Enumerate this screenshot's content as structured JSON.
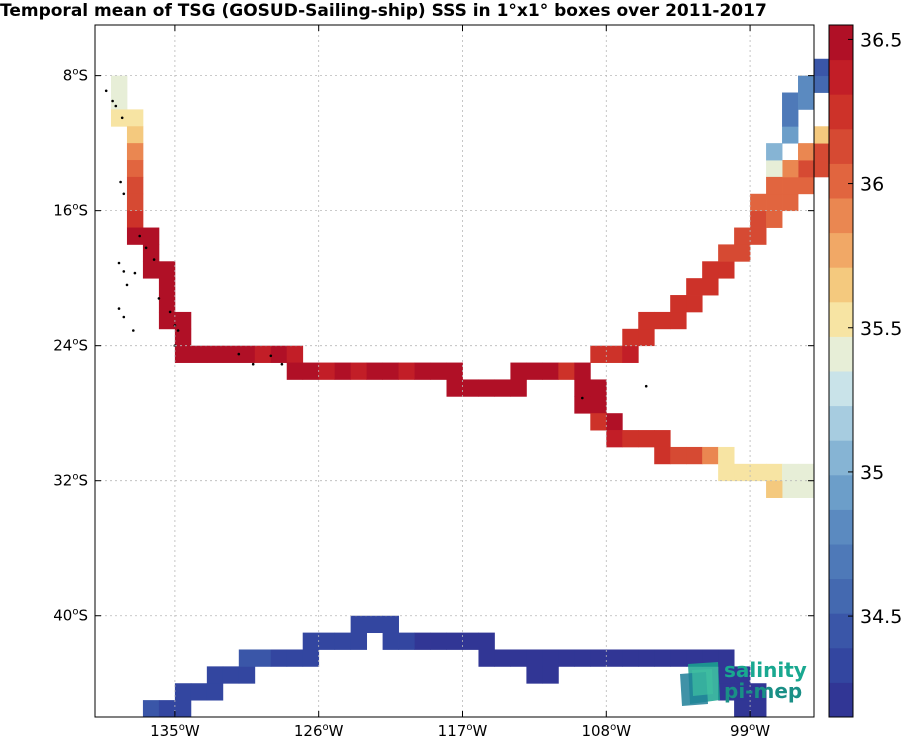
{
  "title": "Temporal mean of TSG (GOSUD-Sailing-ship) SSS in 1°x1° boxes over 2011-2017",
  "map": {
    "lon_range": [
      -140,
      -95
    ],
    "lat_range": [
      -46,
      -5
    ],
    "x_ticks": [
      {
        "lon": -135,
        "label_num": "135",
        "label_sup": "o",
        "label_dir": "W"
      },
      {
        "lon": -126,
        "label_num": "126",
        "label_sup": "o",
        "label_dir": "W"
      },
      {
        "lon": -117,
        "label_num": "117",
        "label_sup": "o",
        "label_dir": "W"
      },
      {
        "lon": -108,
        "label_num": "108",
        "label_sup": "o",
        "label_dir": "W"
      },
      {
        "lon": -99,
        "label_num": "99",
        "label_sup": "o",
        "label_dir": "W"
      }
    ],
    "y_ticks": [
      {
        "lat": -8,
        "label_num": "8",
        "label_sup": "o",
        "label_dir": "S"
      },
      {
        "lat": -16,
        "label_num": "16",
        "label_sup": "o",
        "label_dir": "S"
      },
      {
        "lat": -24,
        "label_num": "24",
        "label_sup": "o",
        "label_dir": "S"
      },
      {
        "lat": -32,
        "label_num": "32",
        "label_sup": "o",
        "label_dir": "S"
      },
      {
        "lat": -40,
        "label_num": "40",
        "label_sup": "o",
        "label_dir": "S"
      }
    ],
    "grid": true,
    "colorbar": {
      "min": 34.15,
      "max": 36.55,
      "ticks": [
        "34.5",
        "35",
        "35.5",
        "36",
        "36.5"
      ],
      "tick_values": [
        34.5,
        35.0,
        35.5,
        36.0,
        36.5
      ],
      "colors": [
        "#313695",
        "#3346a0",
        "#3a56a8",
        "#4469b0",
        "#4e79b8",
        "#5b8ac0",
        "#6c9ec9",
        "#86b4d4",
        "#a7cce0",
        "#c9e3e9",
        "#e7eed7",
        "#f7e4a3",
        "#f4c97e",
        "#f1a866",
        "#ea8751",
        "#e1653f",
        "#d64a33",
        "#cd3229",
        "#c21e27",
        "#b01026"
      ],
      "placement": "right"
    },
    "cells": [
      [
        -139,
        -8,
        35.4
      ],
      [
        -139,
        -9,
        35.4
      ],
      [
        -139,
        -10,
        35.55
      ],
      [
        -138,
        -10,
        35.55
      ],
      [
        -138,
        -11,
        35.7
      ],
      [
        -138,
        -12,
        35.85
      ],
      [
        -138,
        -13,
        35.95
      ],
      [
        -138,
        -14,
        36.1
      ],
      [
        -138,
        -15,
        36.1
      ],
      [
        -138,
        -16,
        36.3
      ],
      [
        -138,
        -17,
        36.45
      ],
      [
        -137,
        -17,
        36.45
      ],
      [
        -137,
        -18,
        36.45
      ],
      [
        -137,
        -19,
        36.45
      ],
      [
        -136,
        -19,
        36.45
      ],
      [
        -136,
        -20,
        36.45
      ],
      [
        -136,
        -21,
        36.45
      ],
      [
        -136,
        -22,
        36.45
      ],
      [
        -135,
        -22,
        36.45
      ],
      [
        -135,
        -23,
        36.45
      ],
      [
        -135,
        -24,
        36.45
      ],
      [
        -134,
        -24,
        36.45
      ],
      [
        -133,
        -24,
        36.45
      ],
      [
        -132,
        -24,
        36.45
      ],
      [
        -131,
        -24,
        36.45
      ],
      [
        -130,
        -24,
        36.35
      ],
      [
        -129,
        -24,
        36.45
      ],
      [
        -128,
        -24,
        36.35
      ],
      [
        -128,
        -25,
        36.45
      ],
      [
        -127,
        -25,
        36.45
      ],
      [
        -126,
        -25,
        36.35
      ],
      [
        -125,
        -25,
        36.45
      ],
      [
        -124,
        -25,
        36.35
      ],
      [
        -123,
        -25,
        36.45
      ],
      [
        -122,
        -25,
        36.45
      ],
      [
        -121,
        -25,
        36.35
      ],
      [
        -120,
        -25,
        36.45
      ],
      [
        -119,
        -25,
        36.45
      ],
      [
        -118,
        -25,
        36.45
      ],
      [
        -118,
        -26,
        36.45
      ],
      [
        -117,
        -26,
        36.45
      ],
      [
        -116,
        -26,
        36.45
      ],
      [
        -115,
        -26,
        36.45
      ],
      [
        -114,
        -26,
        36.45
      ],
      [
        -114,
        -25,
        36.45
      ],
      [
        -113,
        -25,
        36.45
      ],
      [
        -112,
        -25,
        36.45
      ],
      [
        -111,
        -25,
        36.3
      ],
      [
        -110,
        -25,
        36.45
      ],
      [
        -110,
        -26,
        36.45
      ],
      [
        -110,
        -27,
        36.45
      ],
      [
        -109,
        -26,
        36.45
      ],
      [
        -109,
        -27,
        36.45
      ],
      [
        -109,
        -28,
        36.3
      ],
      [
        -108,
        -28,
        36.45
      ],
      [
        -108,
        -29,
        36.35
      ],
      [
        -107,
        -29,
        36.25
      ],
      [
        -106,
        -29,
        36.25
      ],
      [
        -105,
        -29,
        36.25
      ],
      [
        -105,
        -30,
        36.25
      ],
      [
        -104,
        -30,
        36.1
      ],
      [
        -103,
        -30,
        36.1
      ],
      [
        -102,
        -30,
        35.85
      ],
      [
        -101,
        -30,
        35.5
      ],
      [
        -101,
        -31,
        35.5
      ],
      [
        -100,
        -31,
        35.5
      ],
      [
        -99,
        -31,
        35.5
      ],
      [
        -98,
        -31,
        35.5
      ],
      [
        -97,
        -31,
        35.45
      ],
      [
        -97,
        -32,
        35.4
      ],
      [
        -98,
        -32,
        35.7
      ],
      [
        -96,
        -31,
        35.45
      ],
      [
        -96,
        -32,
        35.4
      ],
      [
        -109,
        -24,
        36.3
      ],
      [
        -108,
        -24,
        36.3
      ],
      [
        -107,
        -24,
        36.35
      ],
      [
        -107,
        -23,
        36.3
      ],
      [
        -106,
        -23,
        36.3
      ],
      [
        -106,
        -22,
        36.3
      ],
      [
        -105,
        -22,
        36.3
      ],
      [
        -104,
        -22,
        36.3
      ],
      [
        -104,
        -21,
        36.3
      ],
      [
        -103,
        -21,
        36.25
      ],
      [
        -103,
        -20,
        36.25
      ],
      [
        -102,
        -20,
        36.2
      ],
      [
        -102,
        -19,
        36.2
      ],
      [
        -101,
        -19,
        36.2
      ],
      [
        -101,
        -18,
        36.15
      ],
      [
        -100,
        -18,
        36.15
      ],
      [
        -100,
        -17,
        36.15
      ],
      [
        -99,
        -17,
        36.15
      ],
      [
        -99,
        -16,
        36.1
      ],
      [
        -98,
        -16,
        36.0
      ],
      [
        -98,
        -15,
        36.0
      ],
      [
        -97,
        -15,
        36.0
      ],
      [
        -97,
        -14,
        36.0
      ],
      [
        -96,
        -14,
        35.95
      ],
      [
        -96,
        -13,
        36.1
      ],
      [
        -95,
        -13,
        36.1
      ],
      [
        -95,
        -12,
        36.1
      ],
      [
        -95,
        -11,
        35.65
      ],
      [
        -96,
        -12,
        35.9
      ],
      [
        -97,
        -13,
        35.9
      ],
      [
        -98,
        -13,
        35.4
      ],
      [
        -98,
        -12,
        35.0
      ],
      [
        -97,
        -11,
        34.9
      ],
      [
        -97,
        -10,
        34.65
      ],
      [
        -97,
        -9,
        34.65
      ],
      [
        -96,
        -9,
        34.85
      ],
      [
        -96,
        -8,
        34.85
      ],
      [
        -95,
        -8,
        34.6
      ],
      [
        -95,
        -7,
        34.5
      ],
      [
        -98,
        -14,
        36.0
      ],
      [
        -99,
        -15,
        36.0
      ],
      [
        -137,
        -45,
        34.45
      ],
      [
        -136,
        -45,
        34.3
      ],
      [
        -135,
        -45,
        34.3
      ],
      [
        -135,
        -44,
        34.3
      ],
      [
        -134,
        -44,
        34.3
      ],
      [
        -133,
        -44,
        34.3
      ],
      [
        -133,
        -43,
        34.3
      ],
      [
        -132,
        -43,
        34.35
      ],
      [
        -131,
        -43,
        34.35
      ],
      [
        -131,
        -42,
        34.4
      ],
      [
        -130,
        -42,
        34.4
      ],
      [
        -129,
        -42,
        34.35
      ],
      [
        -128,
        -42,
        34.3
      ],
      [
        -127,
        -42,
        34.3
      ],
      [
        -127,
        -41,
        34.3
      ],
      [
        -126,
        -41,
        34.3
      ],
      [
        -125,
        -41,
        34.3
      ],
      [
        -124,
        -41,
        34.3
      ],
      [
        -124,
        -40,
        34.3
      ],
      [
        -123,
        -40,
        34.3
      ],
      [
        -122,
        -40,
        34.3
      ],
      [
        -122,
        -41,
        34.3
      ],
      [
        -121,
        -41,
        34.3
      ],
      [
        -120,
        -41,
        34.2
      ],
      [
        -119,
        -41,
        34.2
      ],
      [
        -118,
        -41,
        34.2
      ],
      [
        -117,
        -41,
        34.2
      ],
      [
        -116,
        -41,
        34.2
      ],
      [
        -116,
        -42,
        34.2
      ],
      [
        -115,
        -42,
        34.2
      ],
      [
        -114,
        -42,
        34.2
      ],
      [
        -113,
        -42,
        34.2
      ],
      [
        -112,
        -42,
        34.2
      ],
      [
        -111,
        -42,
        34.2
      ],
      [
        -110,
        -42,
        34.2
      ],
      [
        -109,
        -42,
        34.2
      ],
      [
        -108,
        -42,
        34.2
      ],
      [
        -107,
        -42,
        34.2
      ],
      [
        -106,
        -42,
        34.2
      ],
      [
        -105,
        -42,
        34.2
      ],
      [
        -104,
        -42,
        34.2
      ],
      [
        -103,
        -42,
        34.2
      ],
      [
        -102,
        -42,
        34.2
      ],
      [
        -101,
        -42,
        34.2
      ],
      [
        -101,
        -43,
        34.2
      ],
      [
        -100,
        -43,
        34.2
      ],
      [
        -100,
        -44,
        34.2
      ],
      [
        -99,
        -44,
        34.2
      ],
      [
        -99,
        -45,
        34.2
      ],
      [
        -100,
        -45,
        34.2
      ],
      [
        -101,
        -44,
        34.2
      ],
      [
        -112,
        -43,
        34.2
      ],
      [
        -113,
        -43,
        34.2
      ]
    ],
    "islands": [
      [
        -139.3,
        -8.9
      ],
      [
        -138.9,
        -9.5
      ],
      [
        -138.7,
        -9.8
      ],
      [
        -138.3,
        -10.5
      ],
      [
        -138.4,
        -14.3
      ],
      [
        -138.2,
        -15.0
      ],
      [
        -137.2,
        -17.5
      ],
      [
        -136.8,
        -18.2
      ],
      [
        -136.3,
        -18.9
      ],
      [
        -138.5,
        -19.1
      ],
      [
        -138.2,
        -19.6
      ],
      [
        -137.5,
        -19.7
      ],
      [
        -138.0,
        -20.4
      ],
      [
        -136.0,
        -21.2
      ],
      [
        -135.3,
        -22.0
      ],
      [
        -135.0,
        -22.8
      ],
      [
        -134.8,
        -23.1
      ],
      [
        -138.5,
        -21.8
      ],
      [
        -138.2,
        -22.3
      ],
      [
        -137.6,
        -23.1
      ],
      [
        -135.0,
        -24.0
      ],
      [
        -128.3,
        -25.1
      ],
      [
        -130.1,
        -25.1
      ],
      [
        -109.5,
        -27.1
      ],
      [
        -105.5,
        -26.4
      ],
      [
        -131.0,
        -24.5
      ],
      [
        -129.0,
        -24.6
      ]
    ]
  },
  "logo": {
    "line1": "salinity",
    "line2": "pi-mep"
  }
}
